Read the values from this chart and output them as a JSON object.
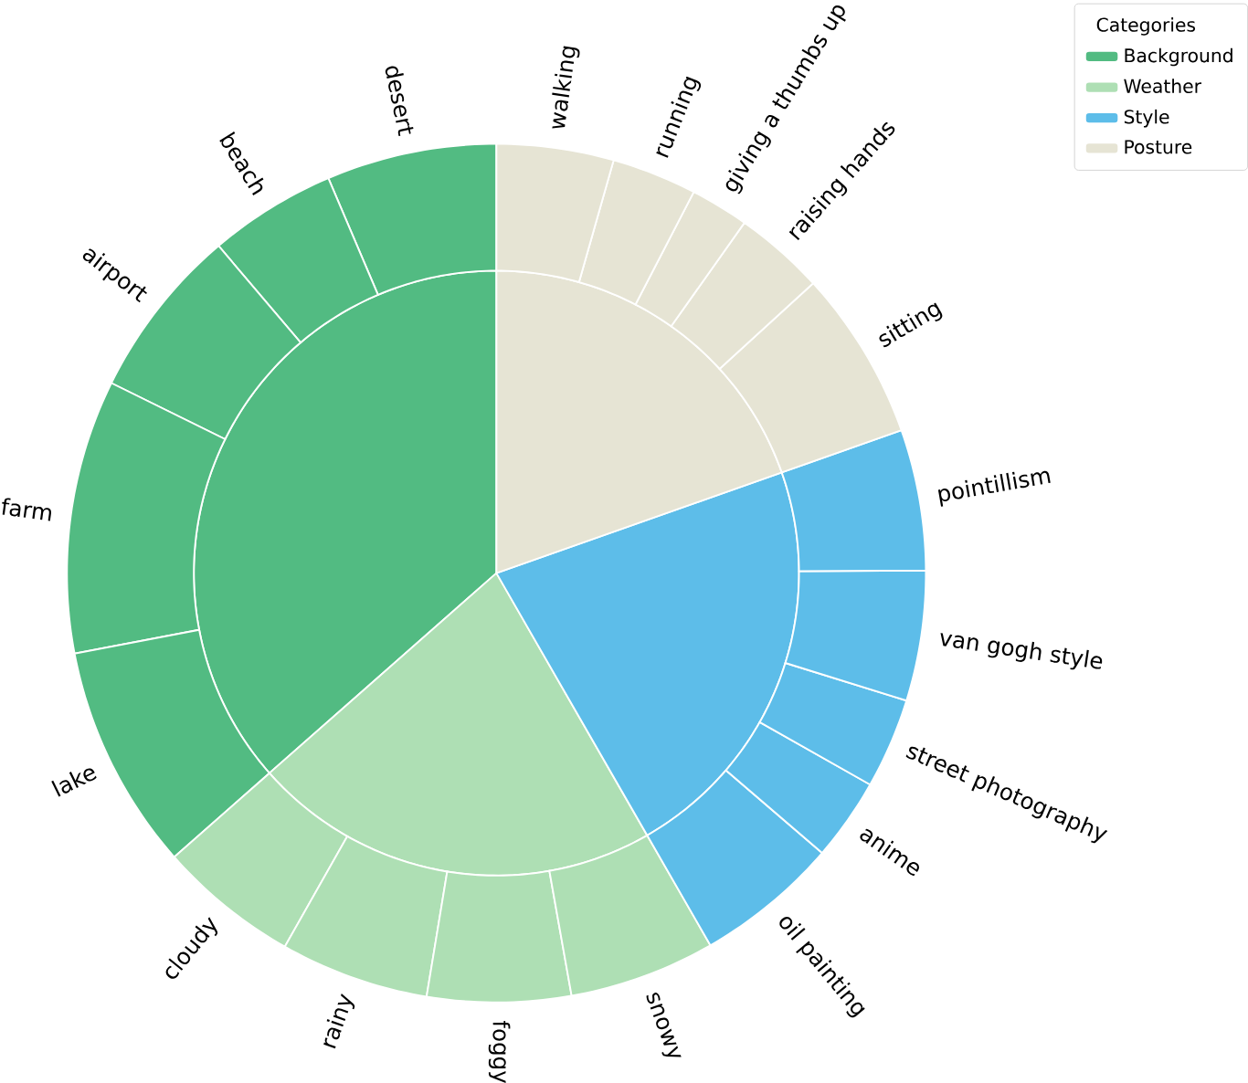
{
  "chart_data": [
    {
      "type": "pie",
      "legend_title": "Categories",
      "legend": "top right",
      "categories": [
        "Background",
        "Weather",
        "Style",
        "Posture"
      ],
      "values": [
        36.5,
        21.8,
        22.1,
        19.6
      ],
      "colors": [
        "#52bb82",
        "#aedfb4",
        "#5dbde9",
        "#e6e4d4"
      ]
    },
    {
      "type": "donut",
      "categories": [
        "desert",
        "beach",
        "airport",
        "farm",
        "lake",
        "cloudy",
        "rainy",
        "foggy",
        "snowy",
        "oil painting",
        "anime",
        "street photography",
        "van gogh style",
        "pointillism",
        "sitting",
        "raising hands",
        "giving a thumbs up",
        "running",
        "walking"
      ],
      "values": [
        6.4,
        4.8,
        6.5,
        10.3,
        8.5,
        5.3,
        5.6,
        5.4,
        5.5,
        5.4,
        3.1,
        3.4,
        4.9,
        5.3,
        6.4,
        3.4,
        2.2,
        3.2,
        4.4
      ],
      "colors": [
        "#52bb82",
        "#52bb82",
        "#52bb82",
        "#52bb82",
        "#52bb82",
        "#aedfb4",
        "#aedfb4",
        "#aedfb4",
        "#aedfb4",
        "#5dbde9",
        "#5dbde9",
        "#5dbde9",
        "#5dbde9",
        "#5dbde9",
        "#e6e4d4",
        "#e6e4d4",
        "#e6e4d4",
        "#e6e4d4",
        "#e6e4d4"
      ]
    }
  ]
}
